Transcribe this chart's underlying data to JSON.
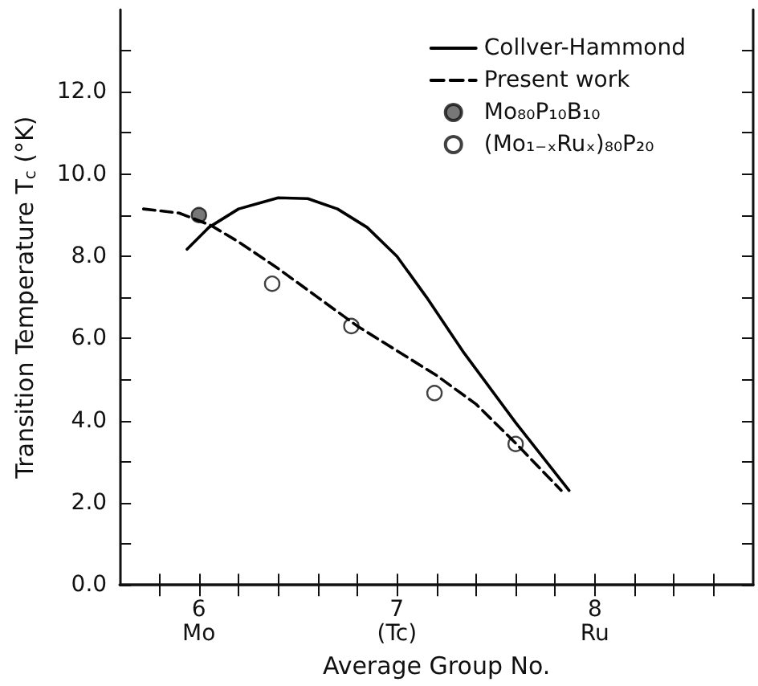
{
  "chart_data": {
    "type": "line",
    "xlabel": "Average Group No.",
    "ylabel": "Transition Temperature T$_{c}$ (°K)",
    "xlim": [
      5.6,
      8.8
    ],
    "xticks": [
      {
        "value": 5.8,
        "label": null
      },
      {
        "value": 6,
        "label": "6\nMo"
      },
      {
        "value": 6.2,
        "label": null
      },
      {
        "value": 6.4,
        "label": null
      },
      {
        "value": 6.6,
        "label": null
      },
      {
        "value": 6.8,
        "label": null
      },
      {
        "value": 7,
        "label": "7\n(Tc)"
      },
      {
        "value": 7.2,
        "label": null
      },
      {
        "value": 7.4,
        "label": null
      },
      {
        "value": 7.6,
        "label": null
      },
      {
        "value": 7.8,
        "label": null
      },
      {
        "value": 8,
        "label": "8\nRu"
      },
      {
        "value": 8.2,
        "label": null
      },
      {
        "value": 8.4,
        "label": null
      },
      {
        "value": 8.6,
        "label": null
      }
    ],
    "ylim": [
      0,
      14
    ],
    "yticks": [
      {
        "value": 0,
        "label": "0.0"
      },
      {
        "value": 1,
        "label": null
      },
      {
        "value": 2,
        "label": "2.0"
      },
      {
        "value": 3,
        "label": null
      },
      {
        "value": 4,
        "label": "4.0"
      },
      {
        "value": 5,
        "label": null
      },
      {
        "value": 6,
        "label": "6.0"
      },
      {
        "value": 7,
        "label": null
      },
      {
        "value": 8,
        "label": "8.0"
      },
      {
        "value": 9,
        "label": null
      },
      {
        "value": 10,
        "label": "10.0"
      },
      {
        "value": 11,
        "label": null
      },
      {
        "value": 12,
        "label": "12.0"
      },
      {
        "value": 13,
        "label": null
      }
    ],
    "grid": false,
    "legend": "top right",
    "series": [
      {
        "name": "Collver-Hammond",
        "color": "#000000",
        "marker": "none",
        "line_style": "solid",
        "x": [
          5.94,
          6.05,
          6.2,
          6.4,
          6.55,
          6.7,
          6.85,
          7.0,
          7.15,
          7.34,
          7.6,
          7.87
        ],
        "values": [
          8.17,
          8.7,
          9.15,
          9.42,
          9.4,
          9.15,
          8.7,
          8.0,
          7.0,
          5.64,
          3.95,
          2.3
        ]
      },
      {
        "name": "Present work",
        "color": "#000000",
        "marker": "none",
        "line_style": "dashed",
        "x": [
          5.72,
          5.9,
          6.06,
          6.2,
          6.4,
          6.6,
          6.8,
          7.0,
          7.2,
          7.4,
          7.6,
          7.83
        ],
        "values": [
          9.15,
          9.05,
          8.75,
          8.35,
          7.7,
          7.0,
          6.3,
          5.7,
          5.1,
          4.4,
          3.45,
          2.3
        ]
      },
      {
        "name": "Mo₈₀P₁₀B₁₀",
        "type": "scatter",
        "color": "#555555",
        "marker": "circle",
        "x": [
          6.0
        ],
        "values": [
          9.0
        ]
      },
      {
        "name": "(Mo₁₋ₓRuₓ)₈₀P₂₀",
        "type": "scatter",
        "color": "#ffffff",
        "marker": "circle",
        "x": [
          6.37,
          6.77,
          7.19,
          7.6
        ],
        "values": [
          7.33,
          6.3,
          4.67,
          3.43
        ]
      }
    ]
  }
}
